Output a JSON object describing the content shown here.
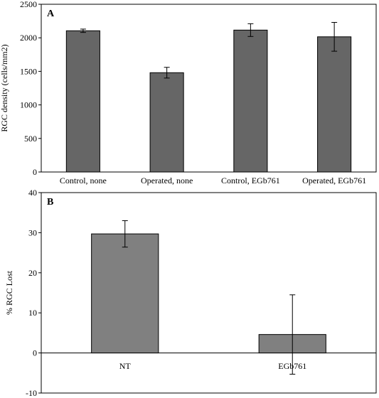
{
  "chart_data": [
    {
      "type": "bar",
      "panel_label": "A",
      "categories": [
        "Control, none",
        "Operated, none",
        "Control, EGb761",
        "Operated, EGb761"
      ],
      "values": [
        2105,
        1480,
        2115,
        2015
      ],
      "errors": [
        25,
        80,
        95,
        215
      ],
      "xlabel": "",
      "ylabel": "RGC density (cells/mm2)",
      "ylim": [
        0,
        2500
      ],
      "yticks": [
        0,
        500,
        1000,
        1500,
        2000,
        2500
      ],
      "bar_color": "#666666",
      "grid": false
    },
    {
      "type": "bar",
      "panel_label": "B",
      "categories": [
        "NT",
        "EGb761"
      ],
      "values": [
        29.7,
        4.6
      ],
      "errors": [
        3.3,
        9.9
      ],
      "xlabel": "",
      "ylabel": "% RGC Lost",
      "ylim": [
        -10,
        40
      ],
      "yticks": [
        -10,
        0,
        10,
        20,
        30,
        40
      ],
      "bar_color": "#808080",
      "grid": false
    }
  ]
}
